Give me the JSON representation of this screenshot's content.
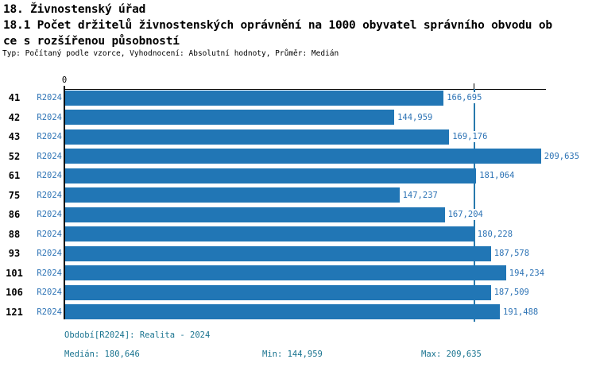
{
  "header": {
    "title_line1": "18. Živnostenský úřad",
    "title_line2": "18.1 Počet držitelů živnostenských oprávnění na 1000 obyvatel správního obvodu ob",
    "title_line3": "ce s rozšířenou působností",
    "meta_line": "Typ: Počítaný podle vzorce, Vyhodnocení: Absolutní hodnoty, Průměr: Medián"
  },
  "chart_data": {
    "type": "bar",
    "orientation": "horizontal",
    "title": "18.1 Počet držitelů živnostenských oprávnění na 1000 obyvatel správního obvodu obce s rozšířenou působností",
    "categories": [
      "41",
      "42",
      "43",
      "52",
      "61",
      "75",
      "86",
      "88",
      "93",
      "101",
      "106",
      "121"
    ],
    "series": [
      {
        "name": "R2024",
        "values": [
          166.695,
          144.959,
          169.176,
          209.635,
          181.064,
          147.237,
          167.204,
          180.228,
          187.578,
          194.234,
          187.509,
          191.488
        ],
        "value_labels": [
          "166,695",
          "144,959",
          "169,176",
          "209,635",
          "181,064",
          "147,237",
          "167,204",
          "180,228",
          "187,578",
          "194,234",
          "187,509",
          "191,488"
        ]
      }
    ],
    "x_axis": {
      "zero_label": "0",
      "xlim": [
        0,
        212.15
      ],
      "median_tick_value": 180.646
    },
    "median": 180.646,
    "min": 144.959,
    "max": 209.635,
    "grid": false,
    "legend_position": "none"
  },
  "footer": {
    "period_label": "Období[R2024]: Realita - 2024",
    "median_label": "Medián: 180,646",
    "min_label": "Min: 144,959",
    "max_label": "Max: 209,635"
  },
  "colors": {
    "bar": "#2176b5",
    "value_text": "#2d73b5",
    "series_text": "#2d73b5",
    "footer_text": "#19738f",
    "axis": "#000000",
    "median_line": "#2879ad"
  }
}
